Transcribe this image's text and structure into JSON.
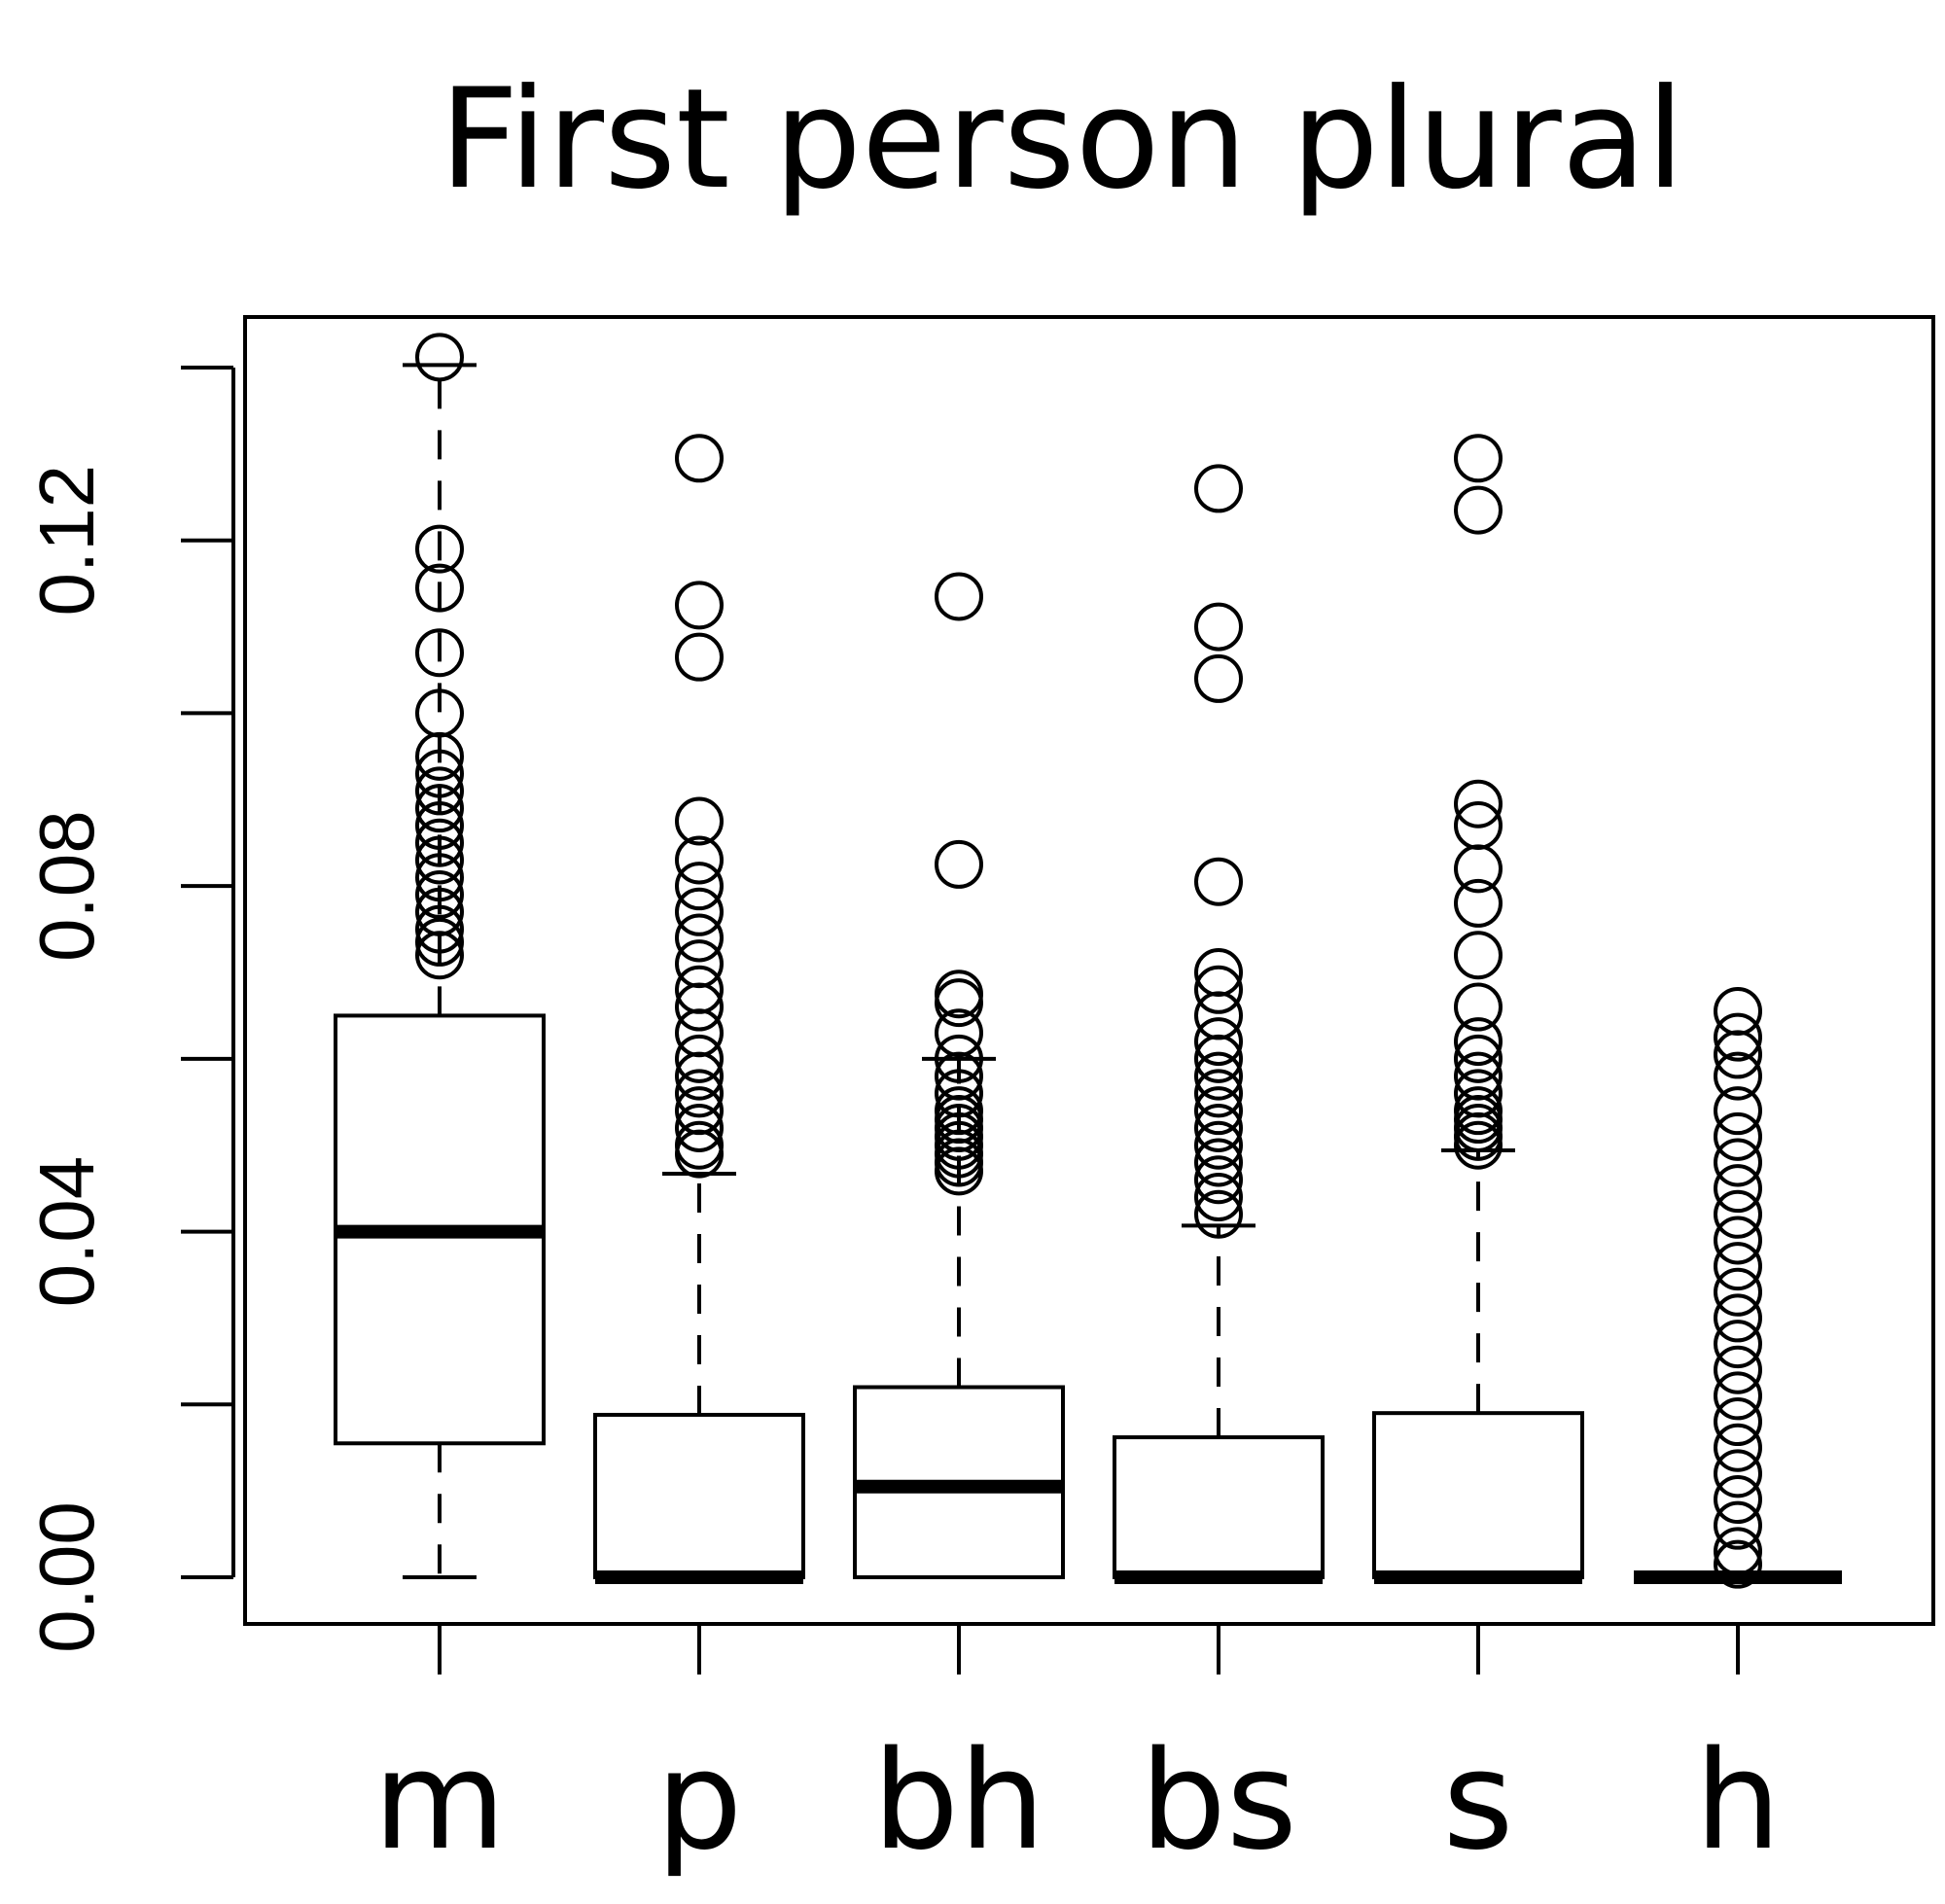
{
  "chart_data": {
    "type": "box",
    "title": "First person plural",
    "xlabel": "",
    "ylabel": "",
    "categories": [
      "m",
      "p",
      "bh",
      "bs",
      "s",
      "h"
    ],
    "y_ticks": [
      "0.00",
      "0.04",
      "0.08",
      "0.12"
    ],
    "y_tick_values": [
      0.0,
      0.04,
      0.08,
      0.12
    ],
    "ylim": [
      -0.011,
      0.147
    ],
    "grid": false,
    "boxes": [
      {
        "category": "m",
        "whisker_low": 0.0,
        "q1": 0.0155,
        "median": 0.04,
        "q3": 0.065,
        "whisker_high": 0.1403,
        "outliers": [
          0.1412,
          0.119,
          0.1145,
          0.107,
          0.1,
          0.095,
          0.093,
          0.091,
          0.089,
          0.087,
          0.085,
          0.083,
          0.081,
          0.079,
          0.077,
          0.075,
          0.0735,
          0.072
        ]
      },
      {
        "category": "p",
        "whisker_low": 0.0,
        "q1": 0.0,
        "median": 0.0,
        "q3": 0.0188,
        "whisker_high": 0.0467,
        "outliers": [
          0.1295,
          0.1125,
          0.1065,
          0.0875,
          0.083,
          0.08,
          0.077,
          0.074,
          0.071,
          0.068,
          0.066,
          0.063,
          0.06,
          0.058,
          0.056,
          0.054,
          0.052,
          0.05,
          0.049
        ]
      },
      {
        "category": "bh",
        "whisker_low": 0.0,
        "q1": 0.0,
        "median": 0.0105,
        "q3": 0.022,
        "whisker_high": 0.06,
        "outliers": [
          0.1135,
          0.0825,
          0.0675,
          0.0665,
          0.063,
          0.06,
          0.058,
          0.056,
          0.054,
          0.053,
          0.052,
          0.051,
          0.05,
          0.049,
          0.048,
          0.047
        ]
      },
      {
        "category": "bs",
        "whisker_low": 0.0,
        "q1": 0.0,
        "median": 0.0,
        "q3": 0.0162,
        "whisker_high": 0.0407,
        "outliers": [
          0.126,
          0.11,
          0.104,
          0.0805,
          0.07,
          0.068,
          0.065,
          0.062,
          0.06,
          0.058,
          0.056,
          0.054,
          0.052,
          0.05,
          0.048,
          0.046,
          0.044,
          0.042
        ]
      },
      {
        "category": "s",
        "whisker_low": 0.0,
        "q1": 0.0,
        "median": 0.0,
        "q3": 0.019,
        "whisker_high": 0.0494,
        "outliers": [
          0.1295,
          0.1235,
          0.0895,
          0.087,
          0.082,
          0.078,
          0.072,
          0.066,
          0.062,
          0.06,
          0.058,
          0.056,
          0.054,
          0.053,
          0.052,
          0.051,
          0.05
        ]
      },
      {
        "category": "h",
        "whisker_low": 0.0,
        "q1": 0.0,
        "median": 0.0,
        "q3": 0.0,
        "whisker_high": 0.0,
        "outliers": [
          0.0655,
          0.0625,
          0.0605,
          0.058,
          0.054,
          0.051,
          0.048,
          0.045,
          0.042,
          0.039,
          0.036,
          0.033,
          0.03,
          0.027,
          0.024,
          0.021,
          0.018,
          0.015,
          0.012,
          0.009,
          0.006,
          0.003,
          0.0015
        ]
      }
    ]
  }
}
